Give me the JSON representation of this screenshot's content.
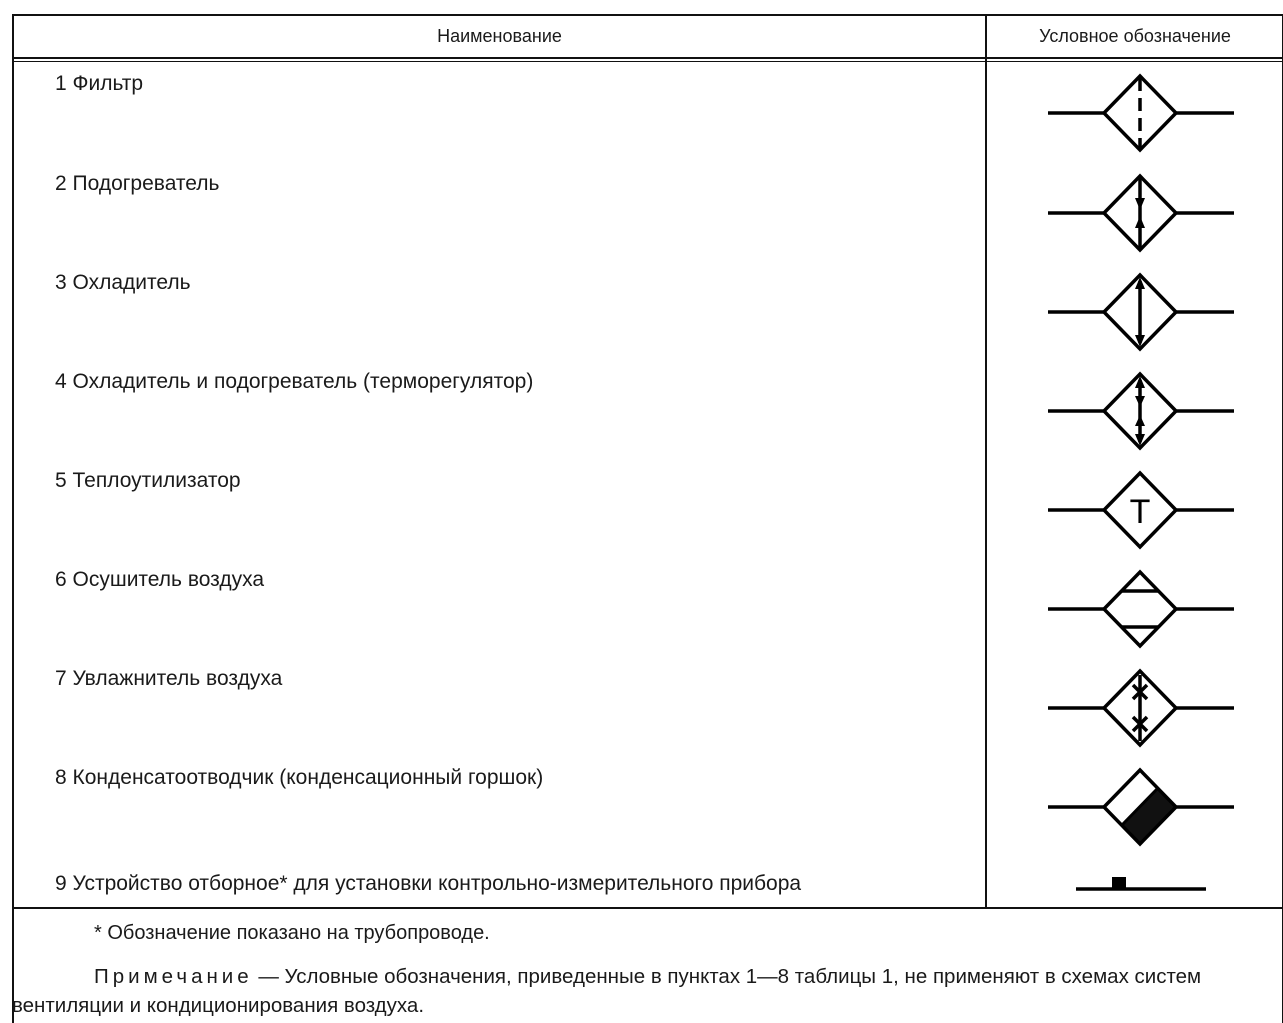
{
  "header": {
    "name_col": "Наименование",
    "symbol_col": "Условное обозначение"
  },
  "rows": [
    {
      "label": "1 Фильтр",
      "symbol_icon": "filter-symbol"
    },
    {
      "label": "2 Подогреватель",
      "symbol_icon": "heater-symbol"
    },
    {
      "label": "3 Охладитель",
      "symbol_icon": "cooler-symbol"
    },
    {
      "label": "4 Охладитель и подогреватель (терморегулятор)",
      "symbol_icon": "cooler-heater-symbol"
    },
    {
      "label": "5 Теплоутилизатор",
      "symbol_icon": "heat-recovery-symbol",
      "symbol_letter": "T"
    },
    {
      "label": "6 Осушитель воздуха",
      "symbol_icon": "dehumidifier-symbol"
    },
    {
      "label": "7 Увлажнитель воздуха",
      "symbol_icon": "humidifier-symbol"
    },
    {
      "label": "8 Конденсатоотводчик (конденсационный горшок)",
      "symbol_icon": "steam-trap-symbol"
    },
    {
      "label": "9 Устройство отборное* для установки контрольно-измерительного прибора",
      "symbol_icon": "sampling-device-symbol"
    }
  ],
  "footnote": "* Обозначение показано на трубопроводе.",
  "note": {
    "prefix": "Примечание",
    "text": " — Условные обозначения, приведенные в пунктах 1—8 таблицы 1, не применяют в схемах систем вентиляции и кондиционирования воздуха."
  }
}
